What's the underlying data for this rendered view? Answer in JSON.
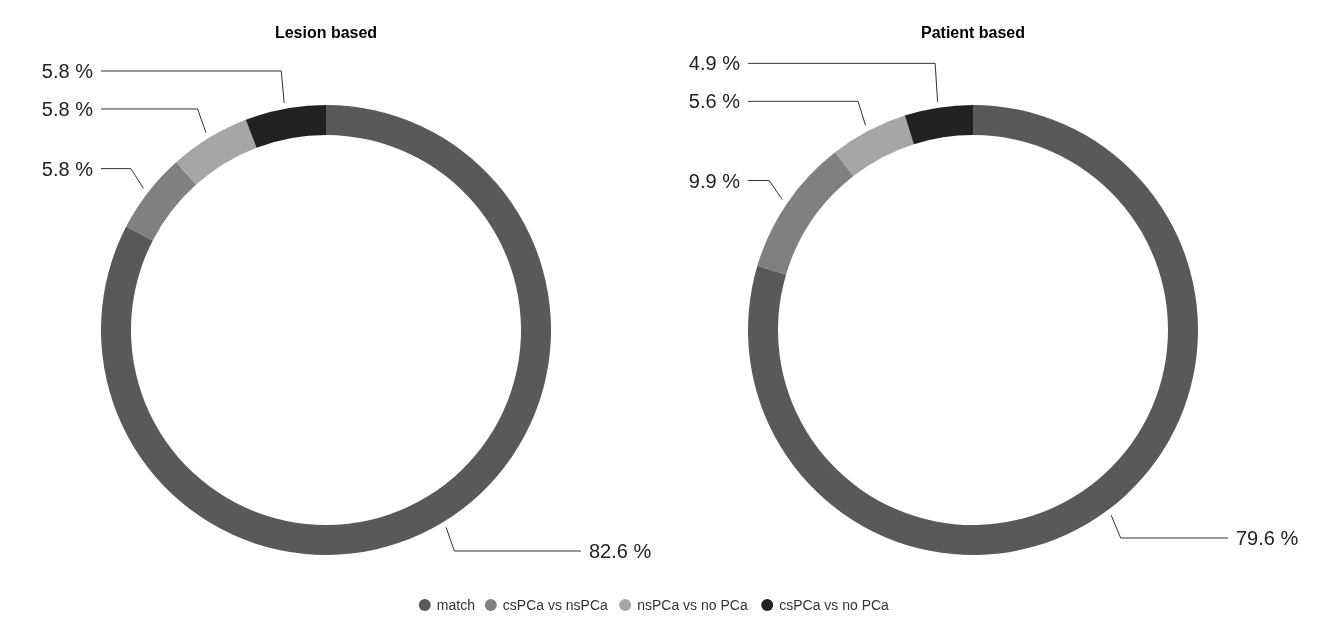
{
  "chart_data": [
    {
      "type": "donut",
      "title": "Lesion based",
      "categories": [
        "match",
        "csPCa vs nsPCa",
        "nsPCa vs no PCa",
        "csPCa vs no PCa"
      ],
      "values": [
        82.6,
        5.8,
        5.8,
        5.8
      ],
      "value_labels": [
        "82.6 %",
        "5.8 %",
        "5.8 %",
        "5.8 %"
      ],
      "colors": [
        "#595959",
        "#808080",
        "#a6a6a6",
        "#222222"
      ],
      "legend": "bottom"
    },
    {
      "type": "donut",
      "title": "Patient based",
      "categories": [
        null,
        null,
        null,
        null
      ],
      "values": [
        79.6,
        9.9,
        5.6,
        4.9
      ],
      "value_labels": [
        "79.6 %",
        "9.9 %",
        "5.6 %",
        "4.9 %"
      ],
      "colors": [
        "#595959",
        "#808080",
        "#a6a6a6",
        "#222222"
      ]
    }
  ]
}
